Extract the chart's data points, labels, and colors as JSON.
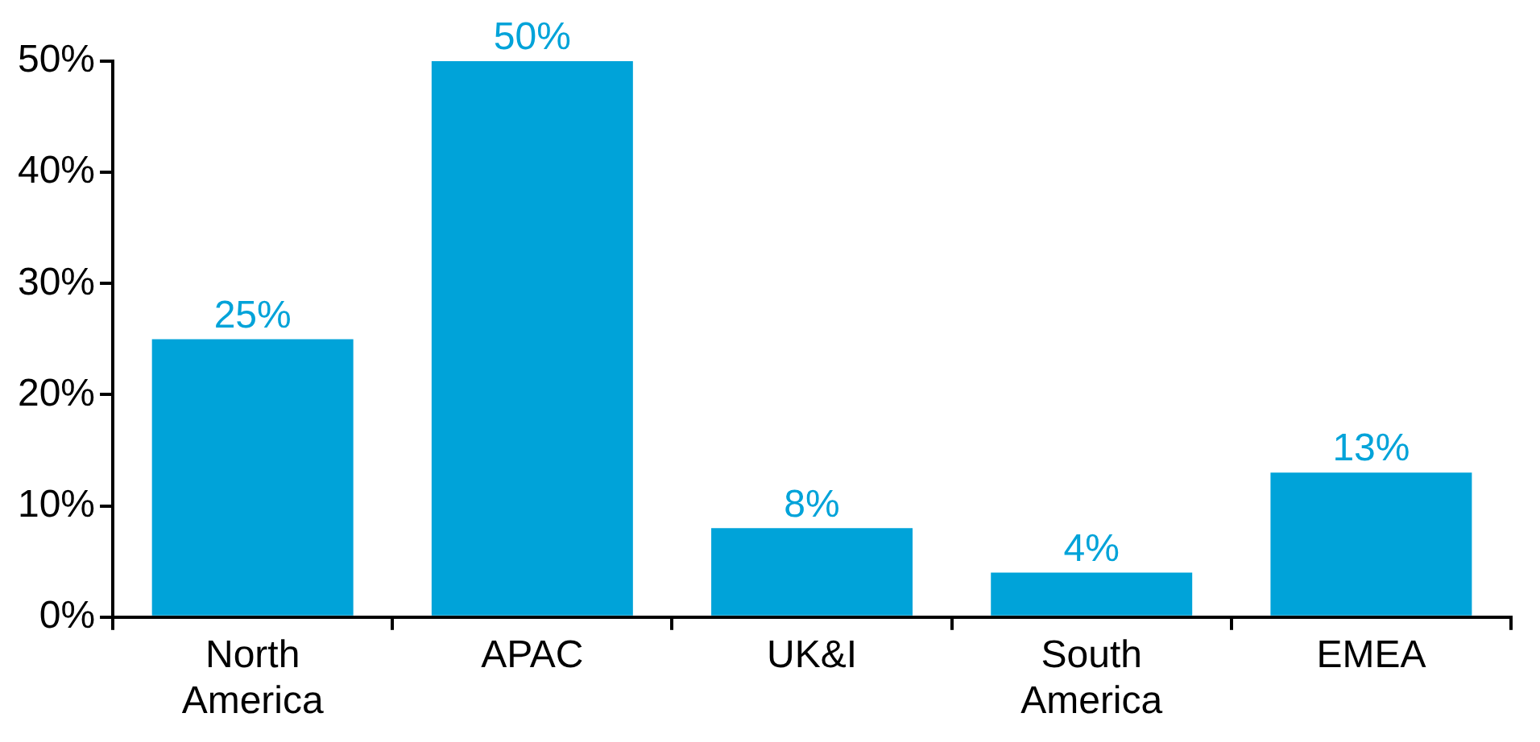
{
  "chart_data": {
    "type": "bar",
    "categories": [
      "North America",
      "APAC",
      "UK&I",
      "South America",
      "EMEA"
    ],
    "values": [
      25,
      50,
      8,
      4,
      13
    ],
    "value_labels": [
      "25%",
      "50%",
      "8%",
      "4%",
      "13%"
    ],
    "color": "#00a3d9",
    "ylim": [
      0,
      50
    ],
    "yticks": [
      {
        "value": 0,
        "label": "0%"
      },
      {
        "value": 10,
        "label": "10%"
      },
      {
        "value": 20,
        "label": "20%"
      },
      {
        "value": 30,
        "label": "30%"
      },
      {
        "value": 40,
        "label": "40%"
      },
      {
        "value": 50,
        "label": "50%"
      }
    ],
    "grid": false,
    "legend": false
  }
}
